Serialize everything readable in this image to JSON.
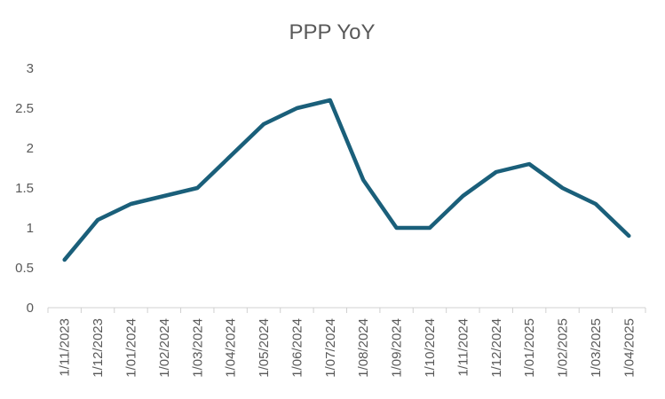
{
  "chart_data": {
    "type": "line",
    "title": "PPP YoY",
    "xlabel": "",
    "ylabel": "",
    "categories": [
      "1/11/2023",
      "1/12/2023",
      "1/01/2024",
      "1/02/2024",
      "1/03/2024",
      "1/04/2024",
      "1/05/2024",
      "1/06/2024",
      "1/07/2024",
      "1/08/2024",
      "1/09/2024",
      "1/10/2024",
      "1/11/2024",
      "1/12/2024",
      "1/01/2025",
      "1/02/2025",
      "1/03/2025",
      "1/04/2025"
    ],
    "series": [
      {
        "values": [
          0.6,
          1.1,
          1.3,
          1.4,
          1.5,
          1.9,
          2.3,
          2.5,
          2.6,
          1.6,
          1.0,
          1.0,
          1.4,
          1.7,
          1.8,
          1.5,
          1.3,
          0.9
        ],
        "color": "#1a5f7a"
      }
    ],
    "ylim": [
      0,
      3
    ],
    "yticks": [
      "0",
      "0.5",
      "1",
      "1.5",
      "2",
      "2.5",
      "3"
    ],
    "ytick_values": [
      0,
      0.5,
      1,
      1.5,
      2,
      2.5,
      3
    ],
    "grid": false,
    "legend": "none"
  }
}
